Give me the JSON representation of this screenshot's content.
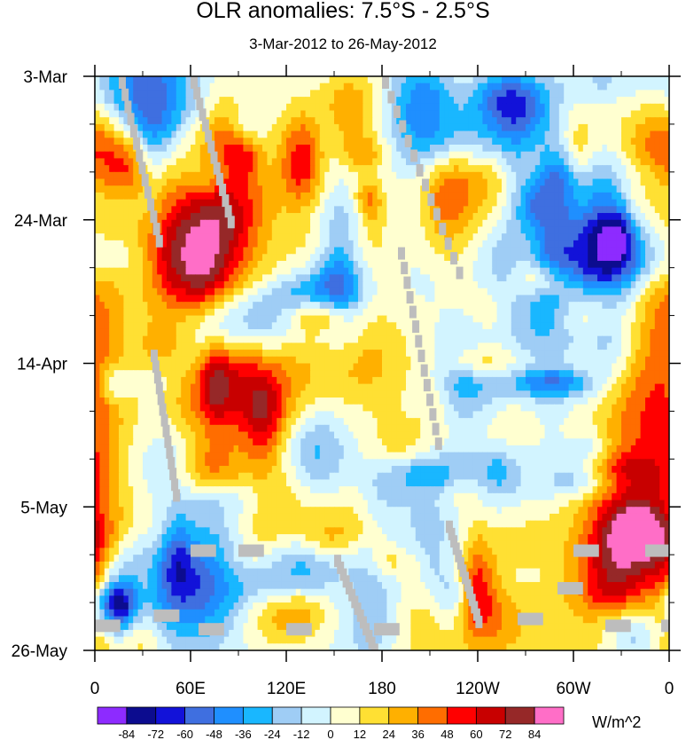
{
  "chart_data": {
    "type": "heatmap",
    "title": "OLR anomalies: 7.5°S - 2.5°S",
    "subtitle": "3-Mar-2012 to 26-May-2012",
    "x_ticks": [
      "0",
      "60E",
      "120E",
      "180",
      "120W",
      "60W",
      "0"
    ],
    "x_tick_values": [
      0,
      60,
      120,
      180,
      240,
      300,
      360
    ],
    "xlim": [
      0,
      360
    ],
    "y_ticks": [
      "3-Mar",
      "24-Mar",
      "14-Apr",
      "5-May",
      "26-May"
    ],
    "y_tick_values": [
      0,
      21,
      42,
      63,
      84
    ],
    "ylim": [
      0,
      84
    ],
    "grid": false,
    "colorbar": {
      "units": "W/m^2",
      "levels": [
        "-84",
        "-72",
        "-60",
        "-48",
        "-36",
        "-24",
        "-12",
        "0",
        "12",
        "24",
        "36",
        "48",
        "60",
        "72",
        "84"
      ],
      "level_values": [
        -84,
        -72,
        -60,
        -48,
        -36,
        -24,
        -12,
        0,
        12,
        24,
        36,
        48,
        60,
        72,
        84
      ],
      "colors": [
        "#8d2bff",
        "#0c0c8f",
        "#1212d9",
        "#3f6fe0",
        "#1f8fff",
        "#19b7ff",
        "#9fcdf5",
        "#d2f4ff",
        "#ffffd0",
        "#ffe033",
        "#ffb000",
        "#ff6d00",
        "#ff0000",
        "#c80000",
        "#962828",
        "#ff6ec7"
      ]
    },
    "missing_color": "#bdbdbd"
  }
}
